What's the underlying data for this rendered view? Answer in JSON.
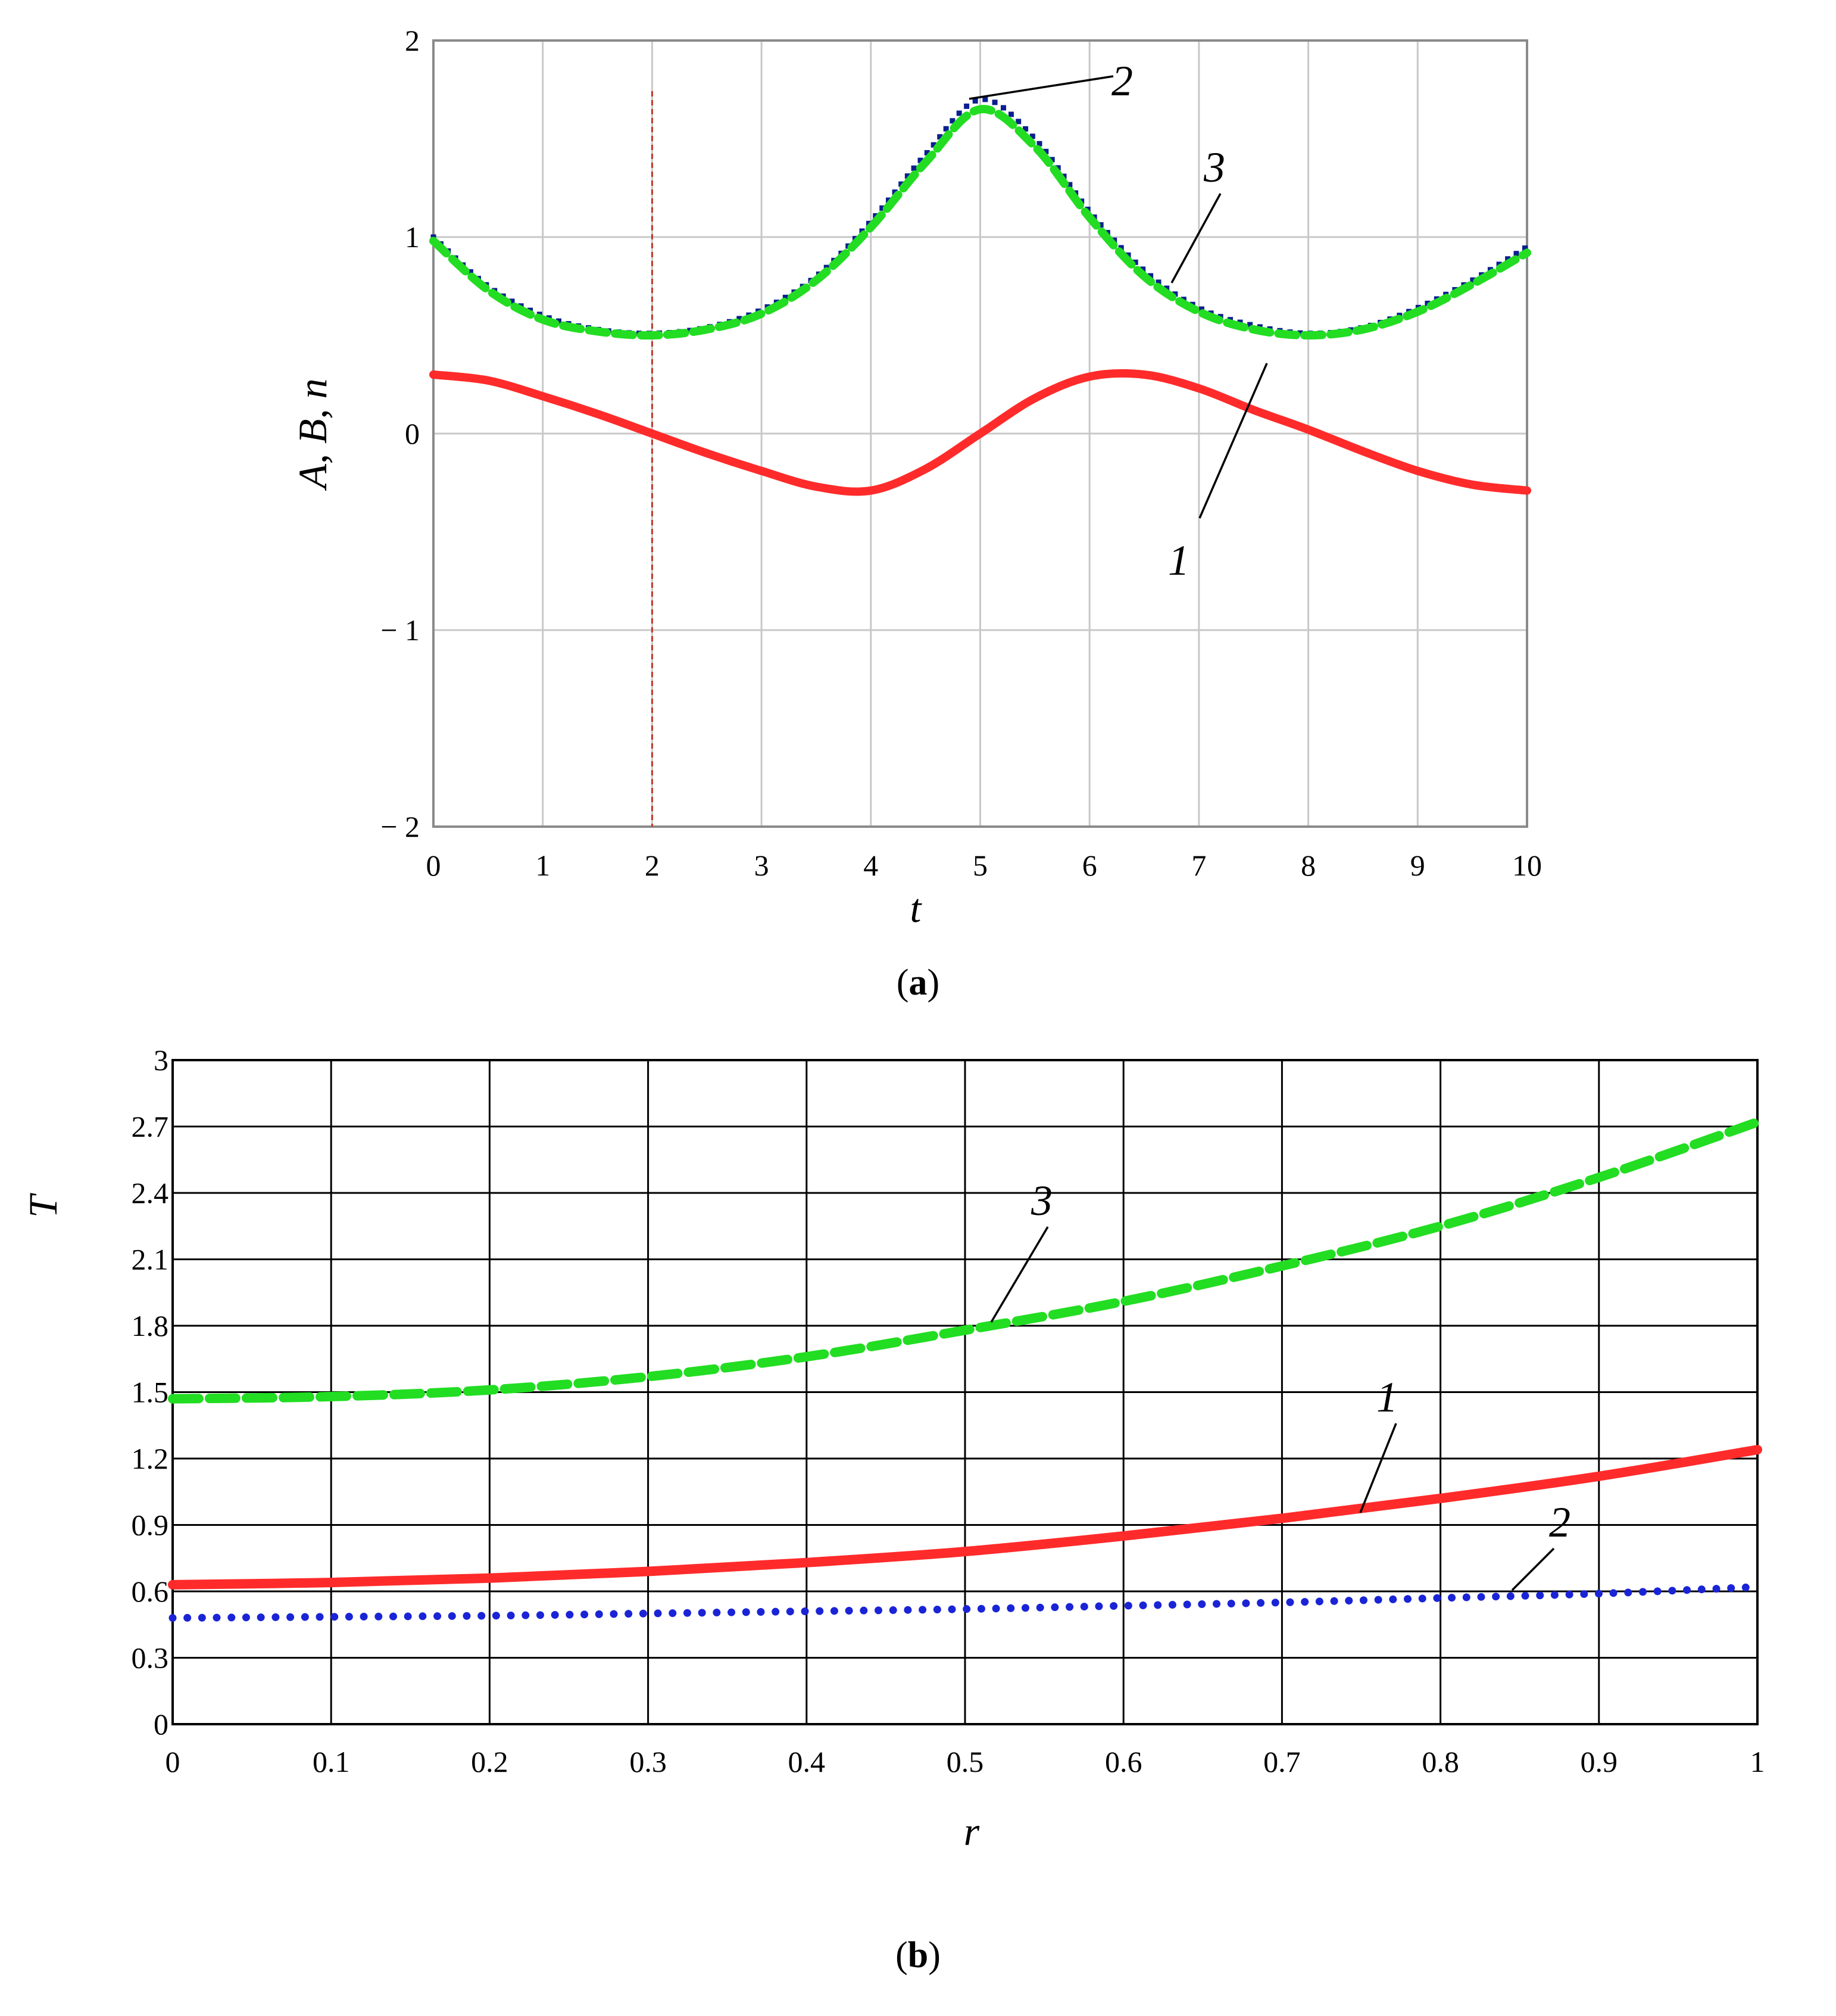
{
  "chart_data": [
    {
      "type": "line",
      "caption": {
        "open": "(",
        "letter": "a",
        "close": ")"
      },
      "xlabel": "t",
      "ylabel": "A, B, n",
      "xlim": [
        0,
        10
      ],
      "ylim": [
        -2,
        2
      ],
      "x_ticks": [
        "0",
        "1",
        "2",
        "3",
        "4",
        "5",
        "6",
        "7",
        "8",
        "9",
        "10"
      ],
      "y_ticks": [
        "2",
        "1",
        "0",
        "− 1",
        "− 2"
      ],
      "grid": true,
      "marker_line": {
        "x": 2,
        "color": "#c0392b",
        "style": "dashed"
      },
      "series": [
        {
          "label": "1",
          "color": "#ff2b2b",
          "style": "solid",
          "x": [
            0,
            0.5,
            1,
            1.5,
            2,
            2.5,
            3,
            3.5,
            4,
            4.5,
            5,
            5.5,
            6,
            6.5,
            7,
            7.5,
            8,
            8.5,
            9,
            9.5,
            10
          ],
          "y": [
            0.3,
            0.27,
            0.19,
            0.1,
            0.0,
            -0.1,
            -0.19,
            -0.27,
            -0.29,
            -0.18,
            0.0,
            0.18,
            0.29,
            0.3,
            0.23,
            0.12,
            0.02,
            -0.09,
            -0.19,
            -0.26,
            -0.29
          ]
        },
        {
          "label": "2",
          "color": "#0a1f8f",
          "style": "dotted",
          "x": [
            0,
            0.5,
            1,
            1.5,
            2,
            2.5,
            3,
            3.5,
            4,
            4.5,
            5,
            5.5,
            6,
            6.5,
            7,
            7.5,
            8,
            8.5,
            9,
            9.5,
            10
          ],
          "y": [
            1.0,
            0.75,
            0.6,
            0.53,
            0.51,
            0.54,
            0.63,
            0.8,
            1.08,
            1.42,
            1.7,
            1.5,
            1.13,
            0.83,
            0.64,
            0.55,
            0.51,
            0.54,
            0.64,
            0.78,
            0.95
          ]
        },
        {
          "label": "3",
          "color": "#22dd22",
          "style": "dashed",
          "x": [
            0,
            0.5,
            1,
            1.5,
            2,
            2.5,
            3,
            3.5,
            4,
            4.5,
            5,
            5.5,
            6,
            6.5,
            7,
            7.5,
            8,
            8.5,
            9,
            9.5,
            10
          ],
          "y": [
            0.98,
            0.73,
            0.58,
            0.52,
            0.5,
            0.53,
            0.61,
            0.78,
            1.05,
            1.38,
            1.65,
            1.46,
            1.1,
            0.8,
            0.62,
            0.53,
            0.5,
            0.53,
            0.62,
            0.76,
            0.92
          ]
        }
      ]
    },
    {
      "type": "line",
      "caption": {
        "open": "(",
        "letter": "b",
        "close": ")"
      },
      "xlabel": "r",
      "ylabel": "T",
      "xlim": [
        0,
        1
      ],
      "ylim": [
        0,
        3
      ],
      "x_ticks": [
        "0",
        "0.1",
        "0.2",
        "0.3",
        "0.4",
        "0.5",
        "0.6",
        "0.7",
        "0.8",
        "0.9",
        "1"
      ],
      "y_ticks": [
        "3",
        "2.7",
        "2.4",
        "2.1",
        "1.8",
        "1.5",
        "1.2",
        "0.9",
        "0.6",
        "0.3",
        "0"
      ],
      "grid": true,
      "series": [
        {
          "label": "1",
          "color": "#ff2b2b",
          "style": "solid",
          "x": [
            0,
            0.1,
            0.2,
            0.3,
            0.4,
            0.5,
            0.6,
            0.7,
            0.8,
            0.9,
            1
          ],
          "y": [
            0.63,
            0.64,
            0.66,
            0.69,
            0.73,
            0.78,
            0.85,
            0.93,
            1.02,
            1.12,
            1.24
          ]
        },
        {
          "label": "2",
          "color": "#1a24d6",
          "style": "dotted",
          "x": [
            0,
            0.1,
            0.2,
            0.3,
            0.4,
            0.5,
            0.6,
            0.7,
            0.8,
            0.9,
            1
          ],
          "y": [
            0.48,
            0.485,
            0.49,
            0.5,
            0.51,
            0.52,
            0.535,
            0.55,
            0.57,
            0.59,
            0.62
          ]
        },
        {
          "label": "3",
          "color": "#22dd22",
          "style": "dashed",
          "x": [
            0,
            0.1,
            0.2,
            0.3,
            0.4,
            0.5,
            0.6,
            0.7,
            0.8,
            0.9,
            1
          ],
          "y": [
            1.47,
            1.48,
            1.51,
            1.57,
            1.66,
            1.78,
            1.91,
            2.07,
            2.25,
            2.47,
            2.72
          ]
        }
      ]
    }
  ]
}
